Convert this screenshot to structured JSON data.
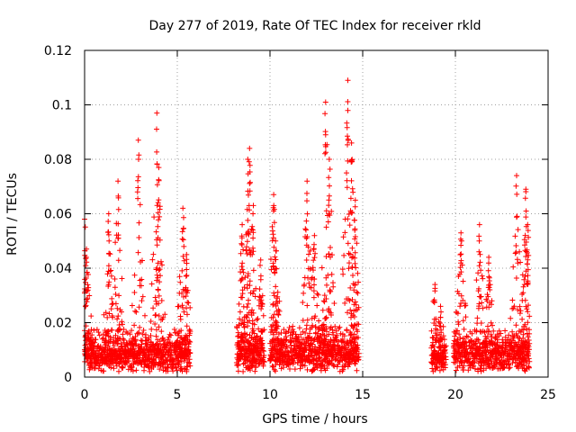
{
  "chart_data": {
    "type": "scatter",
    "title": "Day 277 of 2019, Rate Of TEC Index for receiver rkld",
    "xlabel": "GPS time / hours",
    "ylabel": "ROTI / TECUs",
    "xlim": [
      0,
      25
    ],
    "ylim": [
      0,
      0.12
    ],
    "xticks": [
      "0",
      "5",
      "10",
      "15",
      "20",
      "25"
    ],
    "yticks": [
      "0",
      "0.02",
      "0.04",
      "0.06",
      "0.08",
      "0.1",
      "0.12"
    ],
    "xtick_values": [
      0,
      5,
      10,
      15,
      20,
      25
    ],
    "ytick_values": [
      0,
      0.02,
      0.04,
      0.06,
      0.08,
      0.1,
      0.12
    ],
    "grid": true,
    "marker": "+",
    "color": "#ff0000",
    "series": [
      {
        "name": "ROTI",
        "segments": [
          {
            "x_start": 0.0,
            "x_end": 5.7,
            "base": 0.006,
            "spread": 0.014,
            "peaks": [
              [
                0.0,
                0.058
              ],
              [
                0.1,
                0.047
              ],
              [
                1.3,
                0.06
              ],
              [
                1.8,
                0.072
              ],
              [
                2.9,
                0.087
              ],
              [
                3.9,
                0.097
              ],
              [
                4.0,
                0.077
              ],
              [
                5.3,
                0.062
              ],
              [
                5.5,
                0.045
              ]
            ]
          },
          {
            "x_start": 8.2,
            "x_end": 9.7,
            "base": 0.006,
            "spread": 0.016,
            "peaks": [
              [
                8.5,
                0.056
              ],
              [
                8.8,
                0.08
              ],
              [
                8.9,
                0.084
              ],
              [
                9.1,
                0.063
              ],
              [
                9.5,
                0.043
              ]
            ]
          },
          {
            "x_start": 10.0,
            "x_end": 14.8,
            "base": 0.006,
            "spread": 0.016,
            "peaks": [
              [
                10.2,
                0.067
              ],
              [
                10.3,
                0.05
              ],
              [
                12.0,
                0.072
              ],
              [
                12.4,
                0.052
              ],
              [
                13.0,
                0.101
              ],
              [
                13.2,
                0.08
              ],
              [
                14.2,
                0.109
              ],
              [
                14.4,
                0.086
              ],
              [
                14.6,
                0.065
              ]
            ]
          },
          {
            "x_start": 18.7,
            "x_end": 19.5,
            "base": 0.005,
            "spread": 0.012,
            "peaks": [
              [
                18.9,
                0.034
              ],
              [
                19.2,
                0.026
              ]
            ]
          },
          {
            "x_start": 19.9,
            "x_end": 24.0,
            "base": 0.006,
            "spread": 0.014,
            "peaks": [
              [
                20.3,
                0.053
              ],
              [
                21.3,
                0.056
              ],
              [
                21.8,
                0.044
              ],
              [
                23.3,
                0.074
              ],
              [
                23.8,
                0.069
              ],
              [
                23.9,
                0.056
              ]
            ]
          }
        ]
      }
    ]
  }
}
